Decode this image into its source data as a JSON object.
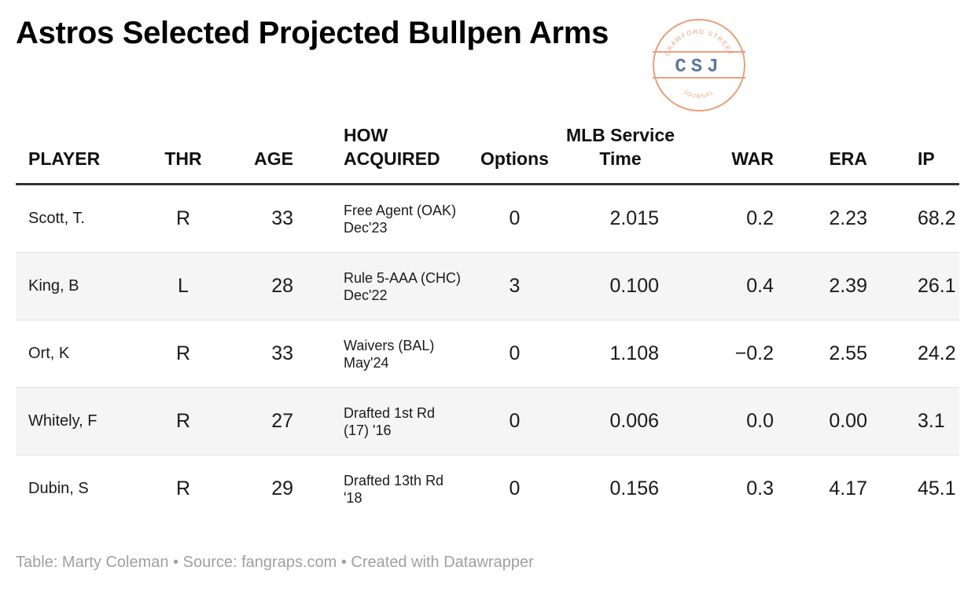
{
  "title": "Astros Selected Projected Bullpen Arms",
  "logo": {
    "top_text": "CRAWFORD STREET",
    "initials": "CSJ",
    "bottom_text": "JOURNAL",
    "color": "#e8a07a",
    "initials_color": "#5b7a99"
  },
  "chart_data": {
    "type": "table",
    "title": "Astros Selected Projected Bullpen Arms",
    "columns": [
      "PLAYER",
      "THR",
      "AGE",
      "HOW ACQUIRED",
      "Options",
      "MLB Service Time",
      "WAR",
      "ERA",
      "IP"
    ],
    "rows": [
      {
        "player": "Scott, T.",
        "thr": "R",
        "age": "33",
        "how": "Free Agent (OAK) Dec'23",
        "options": "0",
        "service": "2.015",
        "war": "0.2",
        "era": "2.23",
        "ip": "68.2"
      },
      {
        "player": "King, B",
        "thr": "L",
        "age": "28",
        "how": "Rule 5-AAA (CHC) Dec'22",
        "options": "3",
        "service": "0.100",
        "war": "0.4",
        "era": "2.39",
        "ip": "26.1"
      },
      {
        "player": "Ort, K",
        "thr": "R",
        "age": "33",
        "how": "Waivers (BAL) May'24",
        "options": "0",
        "service": "1.108",
        "war": "−0.2",
        "era": "2.55",
        "ip": "24.2"
      },
      {
        "player": "Whitely, F",
        "thr": "R",
        "age": "27",
        "how": "Drafted 1st Rd (17) '16",
        "options": "0",
        "service": "0.006",
        "war": "0.0",
        "era": "0.00",
        "ip": "3.1"
      },
      {
        "player": "Dubin, S",
        "thr": "R",
        "age": "29",
        "how": "Drafted 13th Rd '18",
        "options": "0",
        "service": "0.156",
        "war": "0.3",
        "era": "4.17",
        "ip": "45.1"
      }
    ],
    "row_shading": "alternating"
  },
  "footer": "Table: Marty Coleman • Source: fangraps.com • Created with Datawrapper"
}
